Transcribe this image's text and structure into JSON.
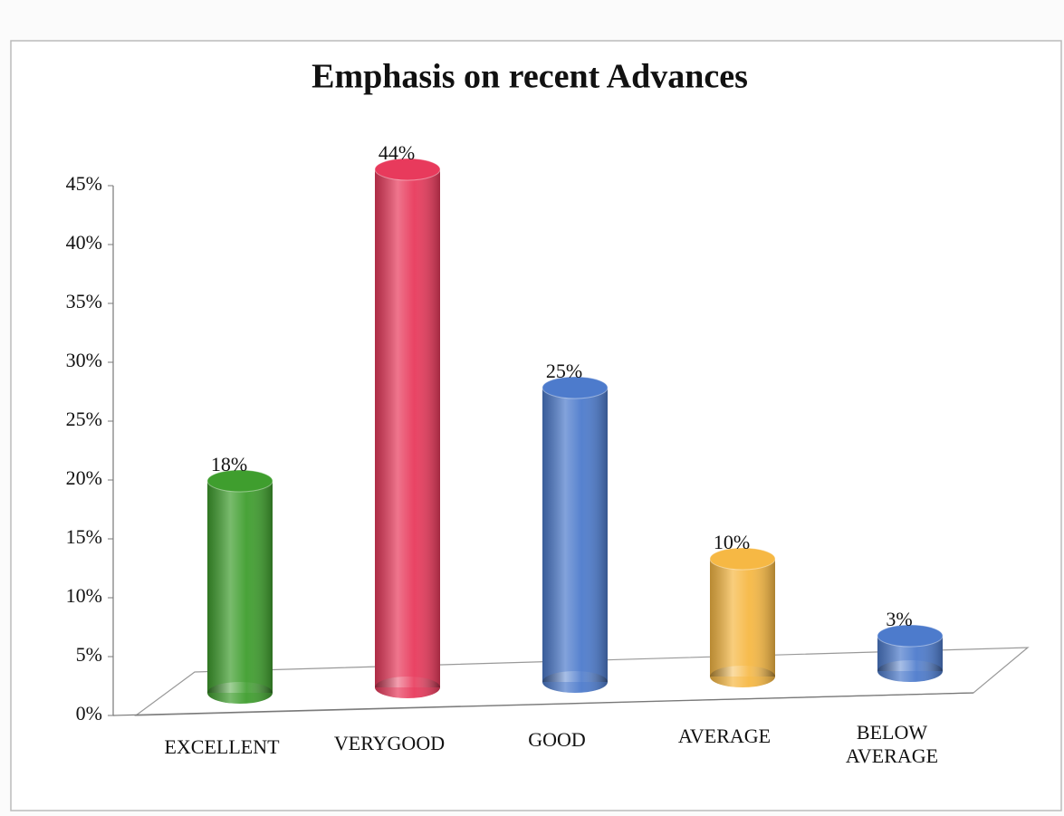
{
  "chart_data": {
    "type": "bar",
    "title": "Emphasis on recent  Advances",
    "categories": [
      "EXCELLENT",
      "VERYGOOD",
      "GOOD",
      "AVERAGE",
      "BELOW AVERAGE"
    ],
    "values": [
      18,
      44,
      25,
      10,
      3
    ],
    "value_labels": [
      "18%",
      "44%",
      "25%",
      "10%",
      "3%"
    ],
    "colors": [
      "#3f9e2e",
      "#e83a5c",
      "#4d7bcc",
      "#f6b844",
      "#4d7bcc"
    ],
    "ylim": [
      0,
      45
    ],
    "yticks": [
      {
        "value": 0,
        "label": "0%"
      },
      {
        "value": 5,
        "label": "5%"
      },
      {
        "value": 10,
        "label": "10%"
      },
      {
        "value": 15,
        "label": "15%"
      },
      {
        "value": 20,
        "label": "20%"
      },
      {
        "value": 25,
        "label": "25%"
      },
      {
        "value": 30,
        "label": "30%"
      },
      {
        "value": 35,
        "label": "35%"
      },
      {
        "value": 40,
        "label": "40%"
      },
      {
        "value": 45,
        "label": "45%"
      }
    ],
    "grid": false
  }
}
